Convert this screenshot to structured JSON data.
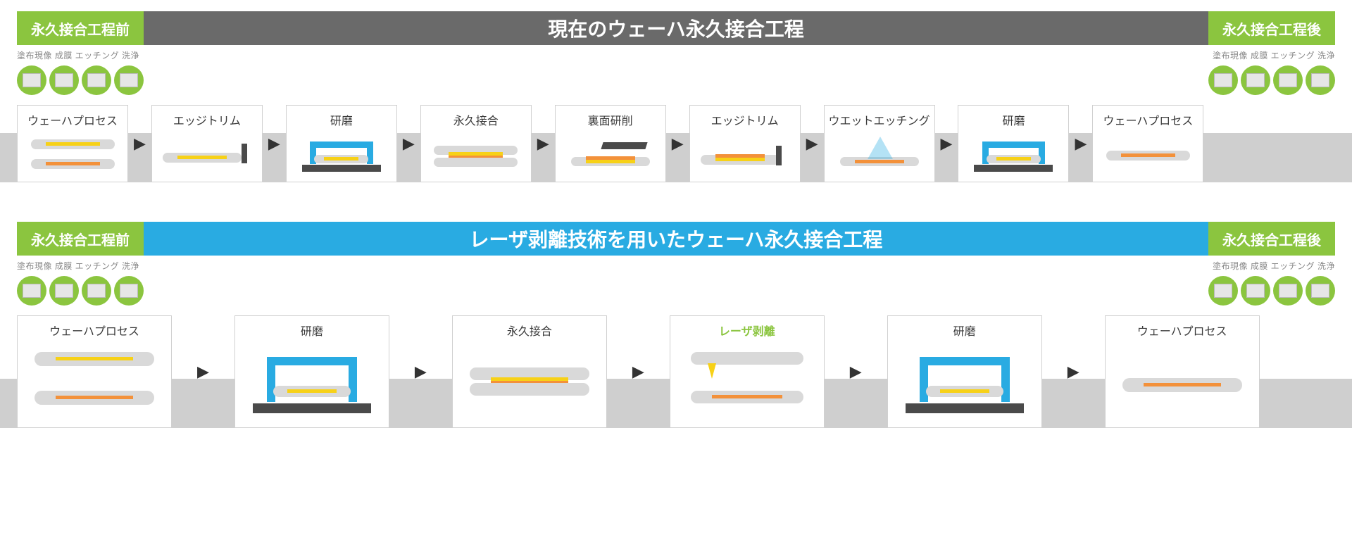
{
  "colors": {
    "green": "#8bc53f",
    "header_gray": "#6a6a6a",
    "header_blue": "#29abe2",
    "strip_gray": "#cfcfcf",
    "wafer_gray": "#d9d9d9",
    "yellow": "#f7d117",
    "orange": "#f3913a",
    "tool_blue": "#29abe2",
    "tool_dark": "#4a4a4a",
    "text_gray": "#888888"
  },
  "caps_label": "塗布現像 成膜 エッチング 洗浄",
  "badges": {
    "before": "永久接合工程前",
    "after": "永久接合工程後"
  },
  "section1": {
    "title": "現在のウェーハ永久接合工程",
    "header_color": "#6a6a6a",
    "steps": [
      {
        "label": "ウェーハプロセス",
        "kind": "wafer2"
      },
      {
        "label": "エッジトリム",
        "kind": "edgetrim"
      },
      {
        "label": "研磨",
        "kind": "polish"
      },
      {
        "label": "永久接合",
        "kind": "bond"
      },
      {
        "label": "裏面研削",
        "kind": "backgrind"
      },
      {
        "label": "エッジトリム",
        "kind": "edgetrim2"
      },
      {
        "label": "ウエットエッチング",
        "kind": "wet"
      },
      {
        "label": "研磨",
        "kind": "polish"
      },
      {
        "label": "ウェーハプロセス",
        "kind": "wafer1o"
      }
    ]
  },
  "section2": {
    "title": "レーザ剥離技術を用いたウェーハ永久接合工程",
    "header_color": "#29abe2",
    "steps": [
      {
        "label": "ウェーハプロセス",
        "kind": "wafer2b"
      },
      {
        "label": "研磨",
        "kind": "polish_b"
      },
      {
        "label": "永久接合",
        "kind": "bond_b"
      },
      {
        "label": "レーザ剥離",
        "kind": "laser",
        "highlight": true
      },
      {
        "label": "研磨",
        "kind": "polish_b"
      },
      {
        "label": "ウェーハプロセス",
        "kind": "wafer1o_b"
      }
    ]
  }
}
